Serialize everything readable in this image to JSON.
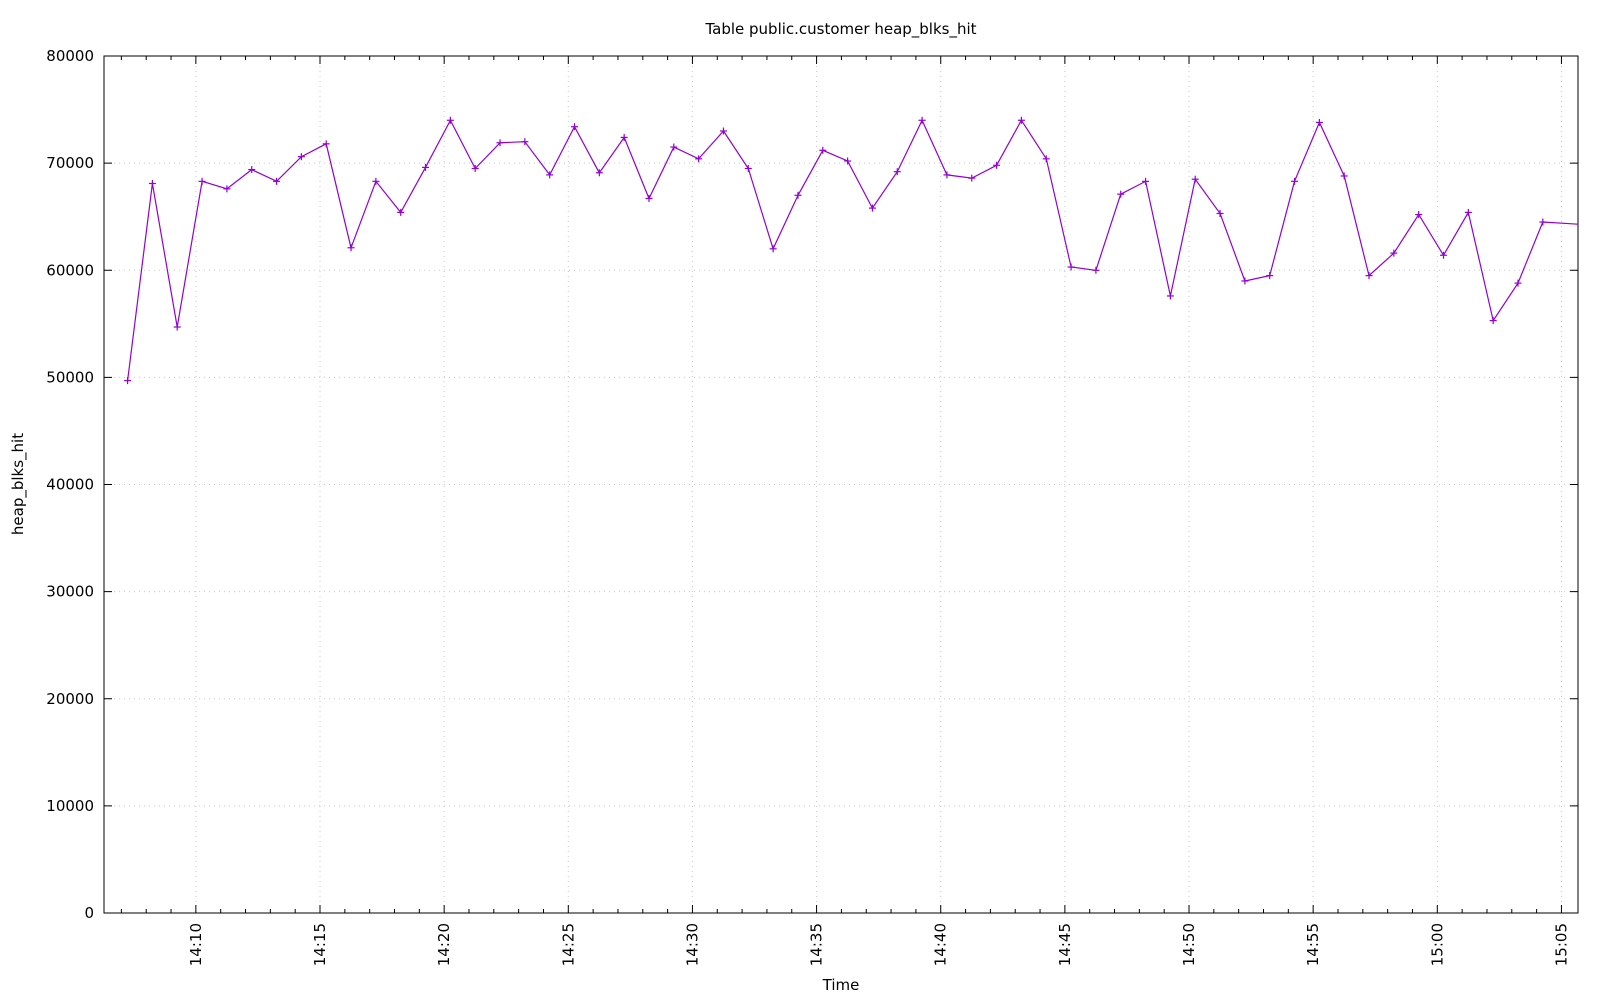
{
  "chart_data": {
    "type": "line",
    "title": "Table public.customer heap_blks_hit",
    "xlabel": "Time",
    "ylabel": "heap_blks_hit",
    "ylim": [
      0,
      80000
    ],
    "xlim": [
      "14:06:18",
      "15:05:40"
    ],
    "y_ticks": [
      0,
      10000,
      20000,
      30000,
      40000,
      50000,
      60000,
      70000,
      80000
    ],
    "x_ticks": [
      "14:10",
      "14:15",
      "14:20",
      "14:25",
      "14:30",
      "14:35",
      "14:40",
      "14:45",
      "14:50",
      "14:55",
      "15:00",
      "15:05"
    ],
    "grid": true,
    "series_color": "#9400d3",
    "grid_color": "#c8c8c8",
    "series": [
      {
        "x": [
          "14:07:15",
          "14:08:15",
          "14:09:15",
          "14:10:15",
          "14:11:15",
          "14:12:15",
          "14:13:15",
          "14:14:15",
          "14:15:15",
          "14:16:15",
          "14:17:15",
          "14:18:15",
          "14:19:15",
          "14:20:15",
          "14:21:15",
          "14:22:15",
          "14:23:15",
          "14:24:15",
          "14:25:15",
          "14:26:15",
          "14:27:15",
          "14:28:15",
          "14:29:15",
          "14:30:15",
          "14:31:15",
          "14:32:15",
          "14:33:15",
          "14:34:15",
          "14:35:15",
          "14:36:15",
          "14:37:15",
          "14:38:15",
          "14:39:15",
          "14:40:15",
          "14:41:15",
          "14:42:15",
          "14:43:15",
          "14:44:15",
          "14:45:15",
          "14:46:15",
          "14:47:15",
          "14:48:15",
          "14:49:15",
          "14:50:15",
          "14:51:15",
          "14:52:15",
          "14:53:15",
          "14:54:15",
          "14:55:15",
          "14:56:15",
          "14:57:15",
          "14:58:15",
          "14:59:15",
          "15:00:15",
          "15:01:15",
          "15:02:15",
          "15:03:15",
          "15:04:15",
          "15:05:40"
        ],
        "values": [
          49700,
          68100,
          54700,
          68300,
          67600,
          69400,
          68300,
          70600,
          71800,
          62100,
          68300,
          65400,
          69600,
          74000,
          69500,
          71900,
          72000,
          68900,
          73400,
          69100,
          72400,
          66700,
          71500,
          70400,
          73000,
          69500,
          62000,
          67000,
          71200,
          70200,
          65800,
          69200,
          74000,
          68900,
          68600,
          69800,
          74000,
          70400,
          60300,
          60000,
          67100,
          68300,
          57600,
          68500,
          65300,
          59000,
          59500,
          68300,
          73800,
          68800,
          59500,
          61600,
          65200,
          61400,
          65400,
          55300,
          58800,
          64500,
          64300
        ]
      }
    ]
  }
}
